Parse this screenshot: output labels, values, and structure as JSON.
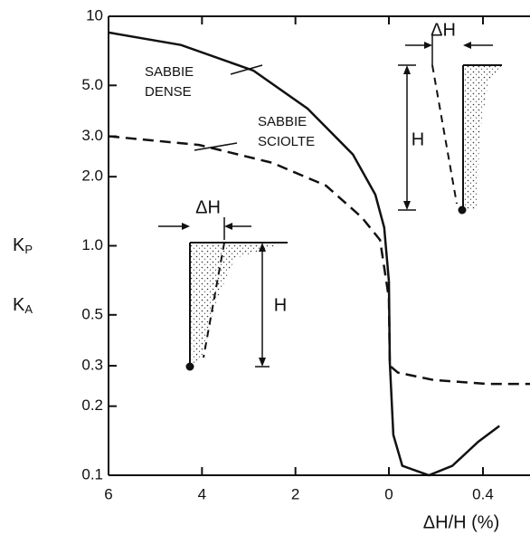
{
  "chart_data": {
    "type": "line",
    "ylabel_passive": {
      "main": "K",
      "sub": "P"
    },
    "ylabel_active": {
      "main": "K",
      "sub": "A"
    },
    "xlabel": "ΔH/H (%)",
    "log_y": true,
    "ylim": [
      0.1,
      10
    ],
    "yticks": [
      0.1,
      0.2,
      0.3,
      0.5,
      {
        "value": 1,
        "label": "1.0"
      },
      {
        "value": 2,
        "label": "2.0"
      },
      {
        "value": 3,
        "label": "3.0"
      },
      {
        "value": 5,
        "label": "5.0"
      },
      10
    ],
    "xlim": [
      6,
      0
    ],
    "xticks": [
      6,
      4,
      2,
      0
    ],
    "x2lim": [
      0,
      0.6
    ],
    "x2ticks": [
      0.4
    ],
    "series": [
      {
        "label": [
          "SABBIE",
          "DENSE"
        ],
        "style": "solid",
        "color": "#111111",
        "passive": {
          "x": [
            6,
            4.45,
            2.9,
            1.74,
            0.77,
            0.29,
            0.1,
            0
          ],
          "values": [
            8.5,
            7.5,
            5.8,
            3.96,
            2.5,
            1.67,
            1.2,
            0.7
          ]
        },
        "active": {
          "x": [
            0,
            0.004,
            0.019,
            0.057,
            0.17,
            0.27,
            0.38,
            0.47
          ],
          "values": [
            0.7,
            0.31,
            0.15,
            0.11,
            0.1,
            0.11,
            0.14,
            0.164
          ]
        }
      },
      {
        "label": [
          "SABBIE",
          "SCIOLTE"
        ],
        "style": "dashed",
        "color": "#111111",
        "passive": {
          "x": [
            6,
            4.06,
            2.5,
            1.35,
            0.58,
            0.19,
            0
          ],
          "values": [
            3.0,
            2.75,
            2.3,
            1.83,
            1.33,
            1.06,
            0.59
          ]
        },
        "active": {
          "x": [
            0,
            0.004,
            0.038,
            0.19,
            0.42,
            0.6
          ],
          "values": [
            0.59,
            0.3,
            0.28,
            0.26,
            0.25,
            0.25
          ]
        }
      }
    ],
    "insets": [
      {
        "dh": "ΔH",
        "h": "H"
      },
      {
        "dh": "ΔH",
        "h": "H"
      }
    ]
  }
}
